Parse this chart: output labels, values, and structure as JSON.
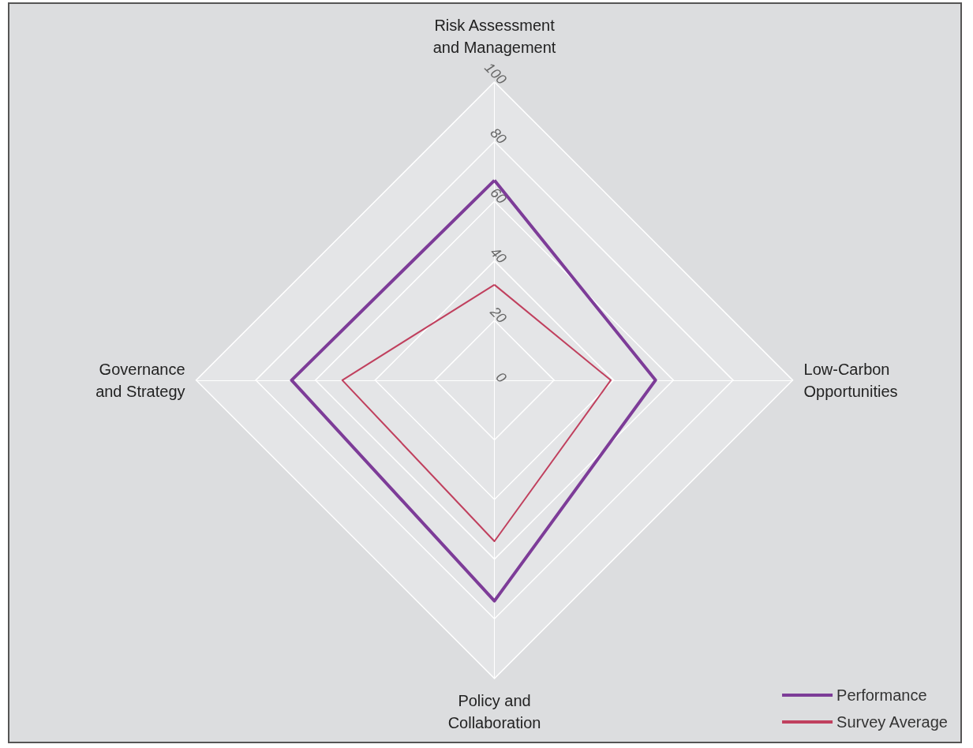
{
  "chart_data": {
    "type": "radar",
    "categories": [
      "Risk Assessment and Management",
      "Low-Carbon Opportunities",
      "Policy and Collaboration",
      "Governance and Strategy"
    ],
    "series": [
      {
        "name": "Performance",
        "color": "#7d3c98",
        "values": [
          67,
          54,
          74,
          68
        ]
      },
      {
        "name": "Survey Average",
        "color": "#c0405e",
        "values": [
          32,
          39,
          54,
          51
        ]
      }
    ],
    "ylim": [
      0,
      100
    ],
    "yticks": [
      0,
      20,
      40,
      60,
      80,
      100
    ],
    "legend": "bottom right",
    "marker": "none",
    "line_style": "solid"
  }
}
